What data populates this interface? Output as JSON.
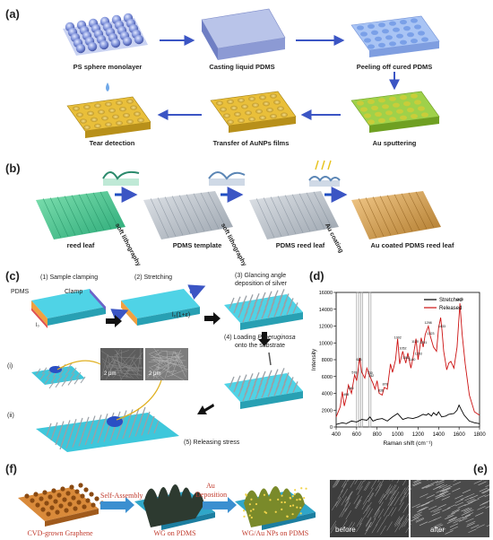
{
  "panel_a": {
    "label": "(a)",
    "steps": [
      "PS sphere monolayer",
      "Casting liquid PDMS",
      "Peeling off cured PDMS",
      "Au sputtering",
      "Transfer of AuNPs films",
      "Tear detection"
    ]
  },
  "panel_b": {
    "label": "(b)",
    "captions": [
      "reed leaf",
      "PDMS template",
      "PDMS reed leaf",
      "Au coated PDMS reed leaf"
    ],
    "arrows": [
      "soft lithography",
      "soft lithography",
      "Au coating"
    ]
  },
  "panel_c": {
    "label": "(c)",
    "step1": "(1) Sample clamping",
    "step2": "(2) Stretching",
    "step3a": "(3) Glancing angle",
    "step3b": "deposition of silver",
    "step4a": "(4) Loading ",
    "step4_italic": "P. aeruginosa",
    "step4b": "onto the substrate",
    "step5": "(5) Releasing stress",
    "pdms": "PDMS",
    "clamp": "Clamp",
    "strain": "l₀(1+ε)",
    "l0": "l₀",
    "i": "(i)",
    "ii": "(ii)",
    "scale1": "2 μm",
    "scale2": "2 μm"
  },
  "panel_d": {
    "label": "(d)",
    "chart_data": {
      "type": "line",
      "xlabel": "Raman shift (cm⁻¹)",
      "ylabel": "Intensity",
      "xlim": [
        400,
        1800
      ],
      "ylim": [
        0,
        16000
      ],
      "xticks": [
        400,
        600,
        800,
        1000,
        1200,
        1400,
        1600,
        1800
      ],
      "yticks": [
        0,
        2000,
        4000,
        6000,
        8000,
        10000,
        12000,
        14000,
        16000
      ],
      "legend_position": "top-right",
      "series": [
        {
          "name": "Stretched",
          "color": "#000000",
          "x": [
            400,
            460,
            500,
            550,
            600,
            650,
            700,
            730,
            760,
            800,
            850,
            900,
            950,
            1000,
            1050,
            1100,
            1150,
            1200,
            1250,
            1280,
            1300,
            1330,
            1350,
            1380,
            1400,
            1430,
            1470,
            1500,
            1550,
            1580,
            1600,
            1620,
            1650,
            1700,
            1750,
            1800
          ],
          "y": [
            300,
            500,
            400,
            700,
            600,
            900,
            800,
            1200,
            700,
            900,
            1000,
            700,
            1200,
            1600,
            900,
            1100,
            1000,
            1200,
            1500,
            1400,
            1600,
            1300,
            1700,
            1400,
            1800,
            1200,
            1300,
            1500,
            1600,
            2000,
            2600,
            2100,
            1400,
            700,
            500,
            400
          ]
        },
        {
          "name": "Released",
          "color": "#cc1111",
          "x": [
            400,
            440,
            460,
            480,
            500,
            520,
            550,
            580,
            600,
            630,
            650,
            680,
            700,
            730,
            760,
            780,
            800,
            820,
            850,
            870,
            900,
            930,
            950,
            980,
            1000,
            1020,
            1050,
            1080,
            1100,
            1130,
            1150,
            1180,
            1200,
            1230,
            1250,
            1270,
            1300,
            1320,
            1350,
            1380,
            1400,
            1420,
            1433,
            1450,
            1480,
            1500,
            1520,
            1550,
            1580,
            1608,
            1630,
            1660,
            1700,
            1750,
            1800
          ],
          "y": [
            1200,
            2400,
            4200,
            2500,
            3500,
            5000,
            4000,
            6200,
            5500,
            8200,
            6500,
            5800,
            7000,
            6000,
            5200,
            4500,
            5500,
            4000,
            3800,
            4700,
            4500,
            7500,
            6500,
            8000,
            10500,
            7500,
            9000,
            7600,
            8800,
            7000,
            8200,
            10500,
            8000,
            10600,
            9500,
            11000,
            12000,
            10800,
            9500,
            9000,
            11800,
            13000,
            11500,
            9000,
            6800,
            7600,
            7800,
            7000,
            9500,
            14700,
            11000,
            7500,
            3800,
            1800,
            1400
          ]
        }
      ],
      "annotations": [
        "498",
        "545",
        "578",
        "623",
        "730",
        "742",
        "836",
        "878",
        "1002",
        "1052",
        "1083",
        "1140",
        "1170",
        "1203",
        "1251",
        "1298",
        "1323",
        "1433",
        "1608"
      ]
    }
  },
  "panel_e": {
    "label": "(e)",
    "left": "before",
    "right": "after"
  },
  "panel_f": {
    "label": "(f)",
    "captions": [
      "CVD-grown Graphene",
      "WG on PDMS",
      "WG/Au NPs on PDMS"
    ],
    "arrow1": "Self-Assembly",
    "arrow2a": "Au",
    "arrow2b": "Deposition"
  }
}
